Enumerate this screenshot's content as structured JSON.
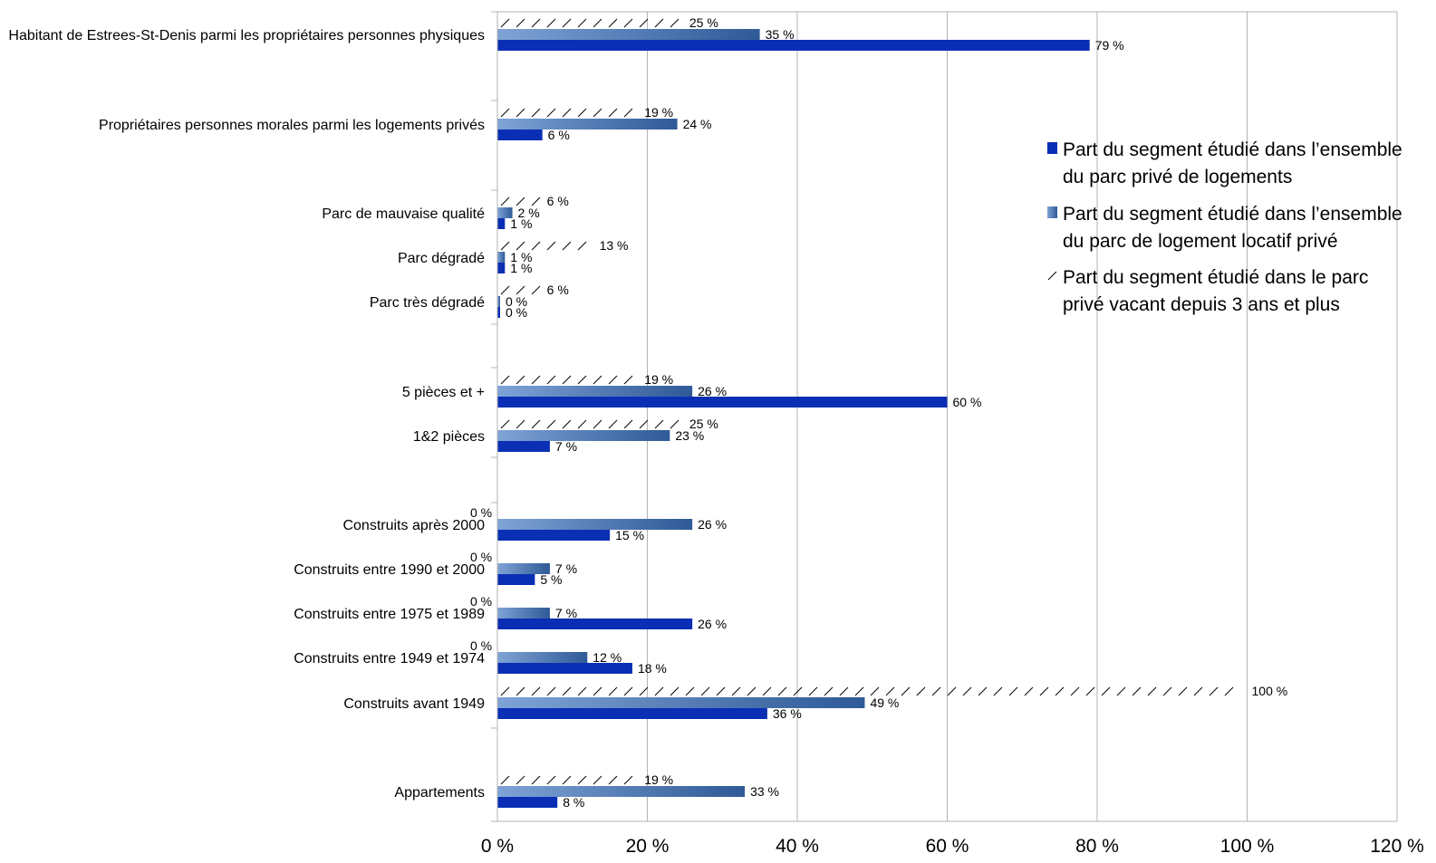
{
  "chart_data": {
    "type": "bar",
    "orientation": "horizontal",
    "grid": true,
    "legend_position": "right",
    "xlim": [
      0,
      120
    ],
    "x_ticks": [
      "0 %",
      "20 %",
      "40 %",
      "60 %",
      "80 %",
      "100 %",
      "120 %"
    ],
    "categories": [
      "Habitant de Estrees-St-Denis parmi les propriétaires personnes physiques",
      "Propriétaires personnes morales parmi les logements privés",
      "Parc de mauvaise qualité",
      "Parc dégradé",
      "Parc très dégradé",
      "5 pièces et +",
      "1&2 pièces",
      "Construits après 2000",
      "Construits entre 1990 et 2000",
      "Construits entre 1975 et 1989",
      "Construits entre 1949 et 1974",
      "Construits avant 1949",
      "Appartements"
    ],
    "series": [
      {
        "name": "Part du segment étudié dans l'ensemble du parc privé de logements",
        "legend_lines": [
          "Part du segment étudié dans l’ensemble",
          "du parc privé de logements"
        ],
        "color": "#0a2fb4",
        "values": [
          79,
          6,
          1,
          1,
          0,
          60,
          7,
          15,
          5,
          26,
          18,
          36,
          8
        ],
        "labels": [
          "79 %",
          "6 %",
          "1 %",
          "1 %",
          "0 %",
          "60 %",
          "7 %",
          "15 %",
          "5 %",
          "26 %",
          "18 %",
          "36 %",
          "8 %"
        ]
      },
      {
        "name": "Part du segment étudié dans l'ensemble du parc de logement locatif privé",
        "legend_lines": [
          "Part du segment étudié dans l’ensemble",
          "du parc de logement locatif privé"
        ],
        "color": "#3a64a4",
        "values": [
          35,
          24,
          2,
          1,
          0,
          26,
          23,
          26,
          7,
          7,
          12,
          49,
          33
        ],
        "labels": [
          "35 %",
          "24 %",
          "2 %",
          "1 %",
          "0 %",
          "26 %",
          "23 %",
          "26 %",
          "7 %",
          "7 %",
          "12 %",
          "49 %",
          "33 %"
        ]
      },
      {
        "name": "Part du segment étudié dans le parc privé vacant depuis 3 ans et plus",
        "legend_lines": [
          "Part du segment étudié dans le parc",
          "privé vacant depuis 3 ans et plus"
        ],
        "color": "#000000",
        "pattern": "hatch",
        "values": [
          25,
          19,
          6,
          13,
          6,
          19,
          25,
          0,
          0,
          0,
          0,
          100,
          19
        ],
        "labels": [
          "25 %",
          "19 %",
          "6 %",
          "13 %",
          "6 %",
          "19 %",
          "25 %",
          "0 %",
          "0 %",
          "0 %",
          "0 %",
          "100 %",
          "19 %"
        ]
      }
    ]
  }
}
